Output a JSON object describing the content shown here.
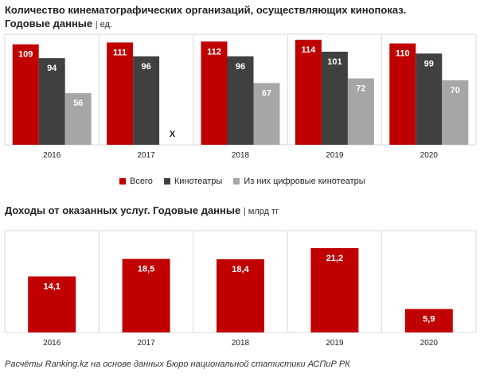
{
  "title1": {
    "main": "Количество кинематографических организаций, осуществляющих кинопоказ.",
    "sub": "Годовые данные",
    "unit": "| ед."
  },
  "title2": {
    "main": "Доходы от оказанных услуг. Годовые данные",
    "unit": "| млрд тг"
  },
  "footer": "Расчёты Ranking.kz на основе данных Бюро национальной статистики АСПиР РК",
  "colors": {
    "red": "#c00000",
    "dark": "#404040",
    "gray": "#a6a6a6",
    "grid": "#d9d9d9"
  },
  "chart_data": [
    {
      "type": "bar",
      "categories": [
        "2016",
        "2017",
        "2018",
        "2019",
        "2020"
      ],
      "series": [
        {
          "name": "Всего",
          "values": [
            109,
            111,
            112,
            114,
            110
          ]
        },
        {
          "name": "Кинотеатры",
          "values": [
            94,
            96,
            96,
            101,
            99
          ]
        },
        {
          "name": "Из них цифровые кинотеатры",
          "values": [
            56,
            null,
            67,
            72,
            70
          ]
        }
      ],
      "missing_label": "X",
      "ylim": [
        0,
        120
      ],
      "legend": "bottom"
    },
    {
      "type": "bar",
      "categories": [
        "2016",
        "2017",
        "2018",
        "2019",
        "2020"
      ],
      "values": [
        14.1,
        18.5,
        18.4,
        21.2,
        5.9
      ],
      "labels": [
        "14,1",
        "18,5",
        "18,4",
        "21,2",
        "5,9"
      ],
      "ylim": [
        0,
        25.6
      ]
    }
  ]
}
